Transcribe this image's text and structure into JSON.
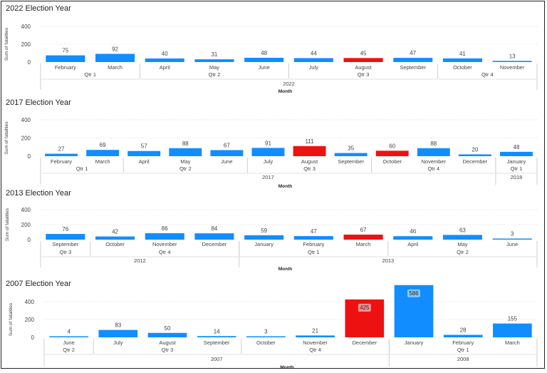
{
  "colors": {
    "bar": "#118DFF",
    "highlight": "#EE1111",
    "axis_text": "#444444",
    "grid": "#dddddd"
  },
  "chart_data": [
    {
      "type": "bar",
      "title": "2022 Election Year",
      "ylabel": "Sum of fatalities",
      "xlabel": "Month",
      "yticks": [
        0,
        200,
        400
      ],
      "ylim": [
        0,
        400
      ],
      "categories": [
        "February",
        "March",
        "April",
        "May",
        "June",
        "July",
        "August",
        "September",
        "October",
        "November"
      ],
      "values": [
        75,
        92,
        40,
        31,
        48,
        44,
        45,
        47,
        41,
        13
      ],
      "highlight": [
        false,
        false,
        false,
        false,
        false,
        false,
        true,
        false,
        false,
        false
      ],
      "quarters": [
        {
          "label": "Qtr 1",
          "start": 0,
          "end": 2
        },
        {
          "label": "Qtr 2",
          "start": 2,
          "end": 5
        },
        {
          "label": "Qtr 3",
          "start": 5,
          "end": 8
        },
        {
          "label": "Qtr 4",
          "start": 8,
          "end": 10
        }
      ],
      "years": [
        {
          "label": "2022",
          "start": 0,
          "end": 10
        }
      ]
    },
    {
      "type": "bar",
      "title": "2017 Election Year",
      "ylabel": "Sum of fatalities",
      "xlabel": "Month",
      "yticks": [
        0,
        200,
        400
      ],
      "ylim": [
        0,
        400
      ],
      "categories": [
        "February",
        "March",
        "April",
        "May",
        "June",
        "July",
        "August",
        "September",
        "October",
        "November",
        "December",
        "January"
      ],
      "values": [
        27,
        69,
        57,
        88,
        67,
        91,
        111,
        35,
        60,
        88,
        20,
        48
      ],
      "highlight": [
        false,
        false,
        false,
        false,
        false,
        false,
        true,
        false,
        true,
        false,
        false,
        false
      ],
      "quarters": [
        {
          "label": "Qtr 1",
          "start": 0,
          "end": 2
        },
        {
          "label": "Qtr 2",
          "start": 2,
          "end": 5
        },
        {
          "label": "Qtr 3",
          "start": 5,
          "end": 8
        },
        {
          "label": "Qtr 4",
          "start": 8,
          "end": 11
        },
        {
          "label": "Qtr 1",
          "start": 11,
          "end": 12
        }
      ],
      "years": [
        {
          "label": "2017",
          "start": 0,
          "end": 11
        },
        {
          "label": "2018",
          "start": 11,
          "end": 12
        }
      ]
    },
    {
      "type": "bar",
      "title": "2013 Election Year",
      "ylabel": "Sum of fatalities",
      "xlabel": "Month",
      "yticks": [
        0,
        200,
        400
      ],
      "ylim": [
        0,
        400
      ],
      "categories": [
        "September",
        "October",
        "November",
        "December",
        "January",
        "February",
        "March",
        "April",
        "May",
        "June"
      ],
      "values": [
        76,
        42,
        86,
        84,
        59,
        47,
        67,
        46,
        63,
        3
      ],
      "highlight": [
        false,
        false,
        false,
        false,
        false,
        false,
        true,
        false,
        false,
        false
      ],
      "quarters": [
        {
          "label": "Qtr 3",
          "start": 0,
          "end": 1
        },
        {
          "label": "Qtr 4",
          "start": 1,
          "end": 4
        },
        {
          "label": "Qtr 1",
          "start": 4,
          "end": 7
        },
        {
          "label": "Qtr 2",
          "start": 7,
          "end": 10
        }
      ],
      "years": [
        {
          "label": "2012",
          "start": 0,
          "end": 4
        },
        {
          "label": "2013",
          "start": 4,
          "end": 10
        }
      ]
    },
    {
      "type": "bar",
      "title": "2007 Election Year",
      "ylabel": "Sum of fatalities",
      "xlabel": "Month",
      "yticks": [
        0,
        200,
        400
      ],
      "ylim": [
        0,
        500
      ],
      "categories": [
        "June",
        "July",
        "August",
        "September",
        "October",
        "November",
        "December",
        "January",
        "February",
        "March"
      ],
      "values": [
        4,
        83,
        50,
        14,
        3,
        21,
        425,
        586,
        28,
        155
      ],
      "highlight": [
        false,
        false,
        false,
        false,
        false,
        false,
        true,
        false,
        false,
        false
      ],
      "inside_labels": [
        false,
        false,
        false,
        false,
        false,
        false,
        true,
        true,
        false,
        false
      ],
      "quarters": [
        {
          "label": "Qtr 2",
          "start": 0,
          "end": 1
        },
        {
          "label": "Qtr 3",
          "start": 1,
          "end": 4
        },
        {
          "label": "Qtr 4",
          "start": 4,
          "end": 7
        },
        {
          "label": "Qtr 1",
          "start": 7,
          "end": 10
        }
      ],
      "years": [
        {
          "label": "2007",
          "start": 0,
          "end": 7
        },
        {
          "label": "2008",
          "start": 7,
          "end": 10
        }
      ]
    }
  ]
}
